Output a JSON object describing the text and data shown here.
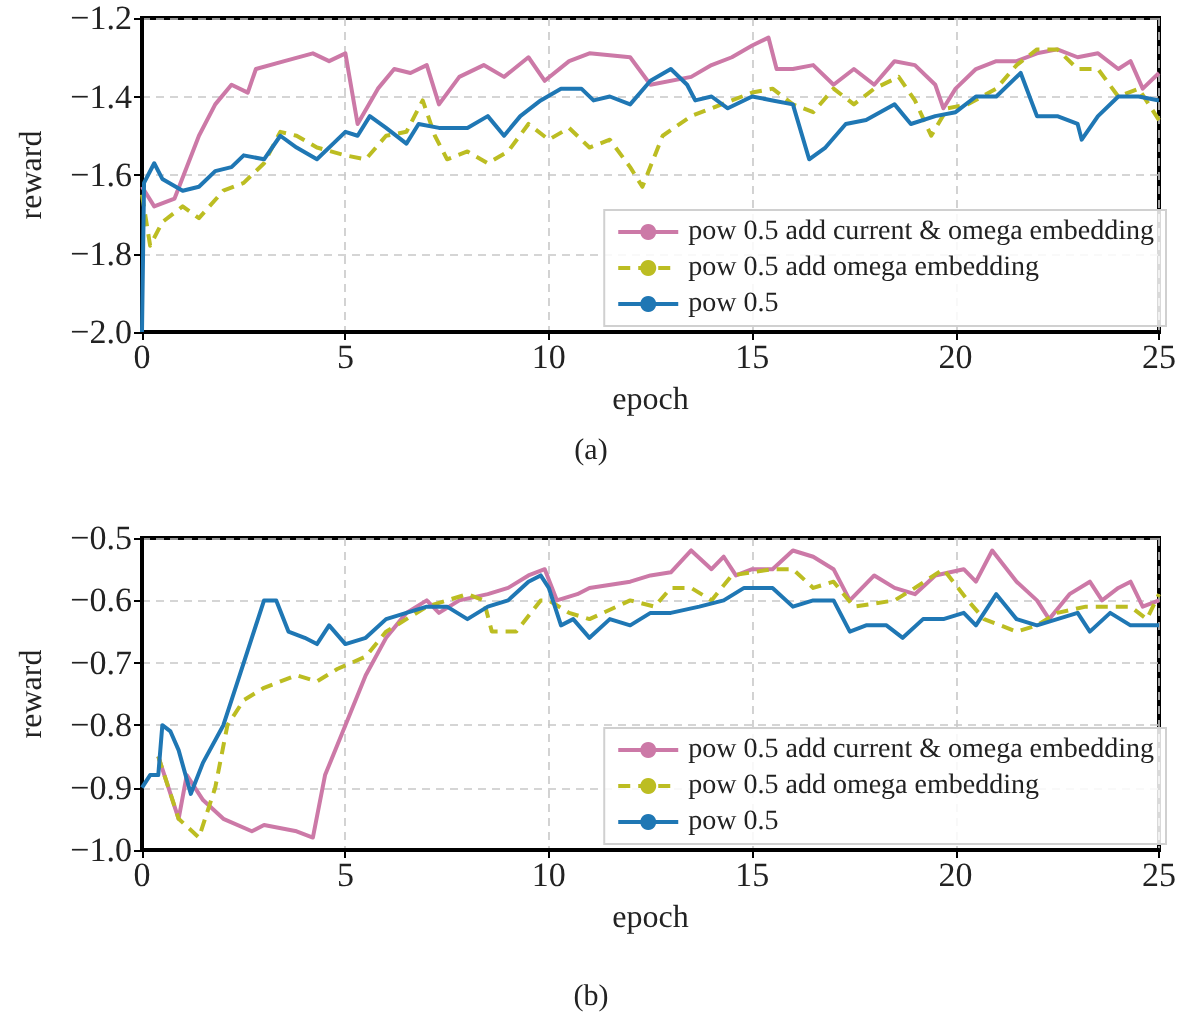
{
  "chart_data": [
    {
      "type": "line",
      "xlabel": "epoch",
      "ylabel": "reward",
      "annotations": [
        "(a)"
      ],
      "xlim": [
        0,
        25
      ],
      "xticks": [
        0,
        5,
        10,
        15,
        20,
        25
      ],
      "ylim": [
        -2.0,
        -1.2
      ],
      "yticks": [
        {
          "value": -2.0,
          "label": "−2.0"
        },
        {
          "value": -1.8,
          "label": "−1.8"
        },
        {
          "value": -1.6,
          "label": "−1.6"
        },
        {
          "value": -1.4,
          "label": "−1.4"
        },
        {
          "value": -1.2,
          "label": "−1.2"
        }
      ],
      "grid": true,
      "legend": "bottom right",
      "series": [
        {
          "name": "pow 0.5 add current & omega embedding",
          "color": "#cc79a7",
          "line_style": "solid",
          "x": [
            0,
            0.3,
            0.8,
            1.4,
            1.8,
            2.2,
            2.6,
            2.8,
            3.5,
            4.2,
            4.6,
            5.0,
            5.3,
            5.8,
            6.2,
            6.6,
            7.0,
            7.3,
            7.8,
            8.4,
            8.9,
            9.5,
            9.9,
            10.5,
            11,
            12,
            12.5,
            13.5,
            14,
            14.5,
            15,
            15.4,
            15.6,
            16,
            16.5,
            17,
            17.5,
            18,
            18.5,
            19,
            19.5,
            19.7,
            20,
            20.5,
            21,
            21.5,
            22,
            22.5,
            23,
            23.5,
            24,
            24.3,
            24.6,
            25
          ],
          "values": [
            -1.63,
            -1.68,
            -1.66,
            -1.5,
            -1.42,
            -1.37,
            -1.39,
            -1.33,
            -1.31,
            -1.29,
            -1.31,
            -1.29,
            -1.47,
            -1.38,
            -1.33,
            -1.34,
            -1.32,
            -1.42,
            -1.35,
            -1.32,
            -1.35,
            -1.3,
            -1.36,
            -1.31,
            -1.29,
            -1.3,
            -1.37,
            -1.35,
            -1.32,
            -1.3,
            -1.27,
            -1.25,
            -1.33,
            -1.33,
            -1.32,
            -1.37,
            -1.33,
            -1.37,
            -1.31,
            -1.32,
            -1.37,
            -1.43,
            -1.38,
            -1.33,
            -1.31,
            -1.31,
            -1.29,
            -1.28,
            -1.3,
            -1.29,
            -1.33,
            -1.31,
            -1.38,
            -1.34
          ]
        },
        {
          "name": "pow 0.5 add omega embedding",
          "color": "#bcbd22",
          "line_style": "dashed",
          "x": [
            0,
            0.2,
            0.5,
            1,
            1.4,
            2,
            2.5,
            3,
            3.4,
            3.8,
            4.3,
            5,
            5.5,
            6,
            6.5,
            6.9,
            7.2,
            7.5,
            8,
            8.5,
            9,
            9.5,
            10,
            10.5,
            11,
            11.5,
            12,
            12.3,
            12.8,
            13.5,
            14,
            14.5,
            15,
            15.5,
            16,
            16.5,
            17,
            17.5,
            18,
            18.6,
            19,
            19.4,
            19.8,
            20.3,
            21,
            21.5,
            22,
            22.5,
            23,
            23.5,
            24,
            24.5,
            25
          ],
          "values": [
            -1.65,
            -1.78,
            -1.72,
            -1.68,
            -1.71,
            -1.64,
            -1.62,
            -1.57,
            -1.49,
            -1.5,
            -1.53,
            -1.55,
            -1.56,
            -1.5,
            -1.49,
            -1.41,
            -1.5,
            -1.56,
            -1.54,
            -1.57,
            -1.54,
            -1.47,
            -1.51,
            -1.48,
            -1.53,
            -1.51,
            -1.58,
            -1.63,
            -1.5,
            -1.45,
            -1.43,
            -1.41,
            -1.39,
            -1.38,
            -1.42,
            -1.44,
            -1.38,
            -1.42,
            -1.38,
            -1.35,
            -1.41,
            -1.5,
            -1.43,
            -1.42,
            -1.38,
            -1.32,
            -1.28,
            -1.28,
            -1.33,
            -1.33,
            -1.4,
            -1.38,
            -1.46
          ]
        },
        {
          "name": "pow 0.5",
          "color": "#1f77b4",
          "line_style": "solid",
          "x": [
            0,
            0.05,
            0.3,
            0.5,
            1,
            1.4,
            1.8,
            2.2,
            2.5,
            3,
            3.4,
            3.8,
            4.3,
            4.7,
            5,
            5.3,
            5.6,
            6,
            6.5,
            6.8,
            7.3,
            8,
            8.5,
            8.9,
            9.3,
            9.8,
            10.3,
            10.8,
            11.1,
            11.5,
            12,
            12.5,
            13,
            13.4,
            13.6,
            14,
            14.4,
            15,
            15.5,
            16,
            16.4,
            16.8,
            17.3,
            17.8,
            18.5,
            18.9,
            19.5,
            20,
            20.5,
            21,
            21.6,
            22,
            22.5,
            23,
            23.1,
            23.5,
            24,
            24.5,
            25
          ],
          "values": [
            -2.0,
            -1.62,
            -1.57,
            -1.61,
            -1.64,
            -1.63,
            -1.59,
            -1.58,
            -1.55,
            -1.56,
            -1.5,
            -1.53,
            -1.56,
            -1.52,
            -1.49,
            -1.5,
            -1.45,
            -1.48,
            -1.52,
            -1.47,
            -1.48,
            -1.48,
            -1.45,
            -1.5,
            -1.45,
            -1.41,
            -1.38,
            -1.38,
            -1.41,
            -1.4,
            -1.42,
            -1.36,
            -1.33,
            -1.37,
            -1.41,
            -1.4,
            -1.43,
            -1.4,
            -1.41,
            -1.42,
            -1.56,
            -1.53,
            -1.47,
            -1.46,
            -1.42,
            -1.47,
            -1.45,
            -1.44,
            -1.4,
            -1.4,
            -1.34,
            -1.45,
            -1.45,
            -1.47,
            -1.51,
            -1.45,
            -1.4,
            -1.4,
            -1.41
          ]
        }
      ]
    },
    {
      "type": "line",
      "xlabel": "epoch",
      "ylabel": "reward",
      "annotations": [
        "(b)"
      ],
      "xlim": [
        0,
        25
      ],
      "xticks": [
        0,
        5,
        10,
        15,
        20,
        25
      ],
      "ylim": [
        -1.0,
        -0.5
      ],
      "yticks": [
        {
          "value": -1.0,
          "label": "−1.0"
        },
        {
          "value": -0.9,
          "label": "−0.9"
        },
        {
          "value": -0.8,
          "label": "−0.8"
        },
        {
          "value": -0.7,
          "label": "−0.7"
        },
        {
          "value": -0.6,
          "label": "−0.6"
        },
        {
          "value": -0.5,
          "label": "−0.5"
        }
      ],
      "grid": true,
      "legend": "bottom right",
      "series": [
        {
          "name": "pow 0.5 add current & omega embedding",
          "color": "#cc79a7",
          "line_style": "solid",
          "x": [
            0.4,
            0.9,
            1.1,
            1.5,
            2,
            2.7,
            3,
            3.8,
            4.2,
            4.5,
            5,
            5.5,
            6,
            6.5,
            7,
            7.3,
            7.8,
            8.5,
            9,
            9.5,
            9.9,
            10.2,
            10.7,
            11,
            12,
            12.5,
            13,
            13.5,
            14,
            14.3,
            14.6,
            15,
            15.5,
            16,
            16.5,
            17,
            17.4,
            18,
            18.5,
            19,
            19.5,
            20.2,
            20.5,
            20.9,
            21.5,
            22,
            22.3,
            22.8,
            23.3,
            23.6,
            24,
            24.3,
            24.6,
            25
          ],
          "values": [
            -0.85,
            -0.95,
            -0.88,
            -0.92,
            -0.95,
            -0.97,
            -0.96,
            -0.97,
            -0.98,
            -0.88,
            -0.8,
            -0.72,
            -0.66,
            -0.62,
            -0.6,
            -0.62,
            -0.6,
            -0.59,
            -0.58,
            -0.56,
            -0.55,
            -0.6,
            -0.59,
            -0.58,
            -0.57,
            -0.56,
            -0.555,
            -0.52,
            -0.55,
            -0.53,
            -0.56,
            -0.55,
            -0.55,
            -0.52,
            -0.53,
            -0.55,
            -0.6,
            -0.56,
            -0.58,
            -0.59,
            -0.56,
            -0.55,
            -0.57,
            -0.52,
            -0.57,
            -0.6,
            -0.63,
            -0.59,
            -0.57,
            -0.6,
            -0.58,
            -0.57,
            -0.61,
            -0.6
          ]
        },
        {
          "name": "pow 0.5 add omega embedding",
          "color": "#bcbd22",
          "line_style": "dashed",
          "x": [
            0.4,
            0.9,
            1.4,
            1.8,
            2.1,
            2.5,
            3,
            3.8,
            4.3,
            4.8,
            5.5,
            6,
            7,
            7.5,
            8,
            8.4,
            8.6,
            9.2,
            9.8,
            10,
            10.5,
            11,
            12,
            12.6,
            13,
            13.5,
            14,
            14.5,
            15.5,
            16,
            16.5,
            17,
            17.5,
            18.5,
            19,
            19.7,
            20.3,
            20.7,
            21.5,
            22,
            22.5,
            23.2,
            23.7,
            24.3,
            24.7,
            25
          ],
          "values": [
            -0.85,
            -0.95,
            -0.98,
            -0.9,
            -0.8,
            -0.76,
            -0.74,
            -0.72,
            -0.73,
            -0.71,
            -0.69,
            -0.65,
            -0.61,
            -0.6,
            -0.59,
            -0.6,
            -0.65,
            -0.65,
            -0.6,
            -0.6,
            -0.62,
            -0.63,
            -0.6,
            -0.61,
            -0.58,
            -0.58,
            -0.6,
            -0.56,
            -0.55,
            -0.55,
            -0.58,
            -0.57,
            -0.61,
            -0.6,
            -0.58,
            -0.55,
            -0.6,
            -0.63,
            -0.65,
            -0.64,
            -0.62,
            -0.61,
            -0.61,
            -0.61,
            -0.63,
            -0.59
          ]
        },
        {
          "name": "pow 0.5",
          "color": "#1f77b4",
          "line_style": "solid",
          "x": [
            0,
            0.2,
            0.4,
            0.5,
            0.7,
            0.9,
            1.2,
            1.5,
            2,
            2.4,
            2.6,
            3,
            3.3,
            3.6,
            4,
            4.3,
            4.6,
            5,
            5.5,
            6,
            6.5,
            7,
            7.5,
            8,
            8.5,
            9,
            9.5,
            9.8,
            10,
            10.3,
            10.6,
            11,
            11.5,
            12,
            12.5,
            13,
            13.7,
            14.3,
            14.8,
            15.5,
            16,
            16.5,
            17,
            17.4,
            17.8,
            18.3,
            18.7,
            19.2,
            19.7,
            20.2,
            20.5,
            21,
            21.5,
            22,
            22.5,
            23,
            23.3,
            23.8,
            24.3,
            25
          ],
          "values": [
            -0.9,
            -0.88,
            -0.88,
            -0.8,
            -0.81,
            -0.84,
            -0.91,
            -0.86,
            -0.8,
            -0.72,
            -0.68,
            -0.6,
            -0.6,
            -0.65,
            -0.66,
            -0.67,
            -0.64,
            -0.67,
            -0.66,
            -0.63,
            -0.62,
            -0.61,
            -0.61,
            -0.63,
            -0.61,
            -0.6,
            -0.57,
            -0.56,
            -0.58,
            -0.64,
            -0.63,
            -0.66,
            -0.63,
            -0.64,
            -0.62,
            -0.62,
            -0.61,
            -0.6,
            -0.58,
            -0.58,
            -0.61,
            -0.6,
            -0.6,
            -0.65,
            -0.64,
            -0.64,
            -0.66,
            -0.63,
            -0.63,
            -0.62,
            -0.64,
            -0.59,
            -0.63,
            -0.64,
            -0.63,
            -0.62,
            -0.65,
            -0.62,
            -0.64,
            -0.64
          ]
        }
      ]
    }
  ]
}
